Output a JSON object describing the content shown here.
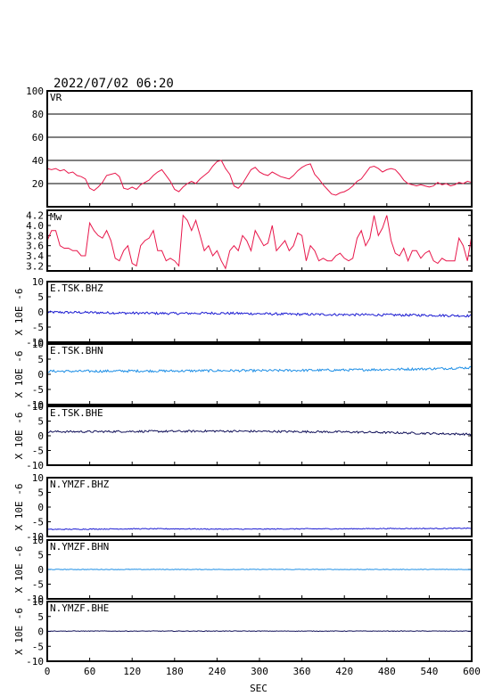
{
  "header": {
    "datetime": "2022/07/02  06:20"
  },
  "x_axis": {
    "label": "SEC",
    "ticks": [
      0,
      60,
      120,
      180,
      240,
      300,
      360,
      420,
      480,
      540,
      600
    ],
    "range": [
      0,
      600
    ]
  },
  "colors": {
    "vr": "#e8174b",
    "mw": "#e8174b",
    "bhz": "#1c1cd2",
    "bhn": "#1e8fe6",
    "bhe": "#12125a",
    "gridline": "#000000"
  },
  "chart_data": [
    {
      "type": "line",
      "id": "vr",
      "label": "VR",
      "ylim": [
        0,
        100
      ],
      "yticks": [
        20,
        40,
        60,
        80,
        100
      ],
      "grid": "horizontal",
      "x": [
        0,
        6,
        12,
        18,
        24,
        30,
        36,
        42,
        48,
        54,
        60,
        66,
        72,
        78,
        84,
        90,
        96,
        102,
        108,
        114,
        120,
        126,
        132,
        138,
        144,
        150,
        156,
        162,
        168,
        174,
        180,
        186,
        192,
        198,
        204,
        210,
        216,
        222,
        228,
        234,
        240,
        246,
        252,
        258,
        264,
        270,
        276,
        282,
        288,
        294,
        300,
        306,
        312,
        318,
        324,
        330,
        336,
        342,
        348,
        354,
        360,
        366,
        372,
        378,
        384,
        390,
        396,
        402,
        408,
        414,
        420,
        426,
        432,
        438,
        444,
        450,
        456,
        462,
        468,
        474,
        480,
        486,
        492,
        498,
        504,
        510,
        516,
        522,
        528,
        534,
        540,
        546,
        552,
        558,
        564,
        570,
        576,
        582,
        588,
        594,
        600
      ],
      "values": [
        33,
        32,
        33,
        31,
        32,
        29,
        30,
        27,
        26,
        24,
        16,
        14,
        17,
        21,
        27,
        28,
        29,
        26,
        16,
        15,
        17,
        15,
        19,
        21,
        23,
        27,
        30,
        32,
        27,
        22,
        15,
        13,
        17,
        20,
        22,
        20,
        24,
        27,
        30,
        35,
        39,
        40,
        33,
        28,
        18,
        16,
        20,
        26,
        32,
        34,
        30,
        28,
        27,
        30,
        28,
        26,
        25,
        24,
        27,
        31,
        34,
        36,
        37,
        28,
        24,
        19,
        15,
        11,
        10,
        12,
        13,
        15,
        18,
        22,
        24,
        29,
        34,
        35,
        33,
        30,
        32,
        33,
        32,
        28,
        23,
        20,
        19,
        18,
        19,
        18,
        17,
        18,
        21,
        19,
        20,
        18,
        19,
        21,
        20,
        22,
        21
      ]
    },
    {
      "type": "line",
      "id": "mw",
      "label": "Mw",
      "ylim": [
        3.1,
        4.3
      ],
      "yticks": [
        3.2,
        3.4,
        3.6,
        3.8,
        4.0,
        4.2
      ],
      "ytick_labels": [
        "3.2",
        "3.4",
        "3.6",
        "3.8",
        "4.0",
        "4.2"
      ],
      "x": [
        0,
        6,
        12,
        18,
        24,
        30,
        36,
        42,
        48,
        54,
        60,
        66,
        72,
        78,
        84,
        90,
        96,
        102,
        108,
        114,
        120,
        126,
        132,
        138,
        144,
        150,
        156,
        162,
        168,
        174,
        180,
        186,
        192,
        198,
        204,
        210,
        216,
        222,
        228,
        234,
        240,
        246,
        252,
        258,
        264,
        270,
        276,
        282,
        288,
        294,
        300,
        306,
        312,
        318,
        324,
        330,
        336,
        342,
        348,
        354,
        360,
        366,
        372,
        378,
        384,
        390,
        396,
        402,
        408,
        414,
        420,
        426,
        432,
        438,
        444,
        450,
        456,
        462,
        468,
        474,
        480,
        486,
        492,
        498,
        504,
        510,
        516,
        522,
        528,
        534,
        540,
        546,
        552,
        558,
        564,
        570,
        576,
        582,
        588,
        594,
        600
      ],
      "values": [
        3.7,
        3.9,
        3.9,
        3.6,
        3.55,
        3.55,
        3.5,
        3.5,
        3.4,
        3.4,
        4.05,
        3.9,
        3.8,
        3.75,
        3.9,
        3.7,
        3.35,
        3.3,
        3.5,
        3.6,
        3.25,
        3.2,
        3.6,
        3.7,
        3.75,
        3.9,
        3.5,
        3.5,
        3.3,
        3.35,
        3.3,
        3.2,
        4.2,
        4.1,
        3.9,
        4.1,
        3.8,
        3.5,
        3.6,
        3.4,
        3.5,
        3.3,
        3.15,
        3.5,
        3.6,
        3.5,
        3.8,
        3.7,
        3.5,
        3.9,
        3.75,
        3.6,
        3.65,
        4.0,
        3.5,
        3.6,
        3.7,
        3.5,
        3.6,
        3.85,
        3.8,
        3.3,
        3.6,
        3.5,
        3.3,
        3.35,
        3.3,
        3.3,
        3.4,
        3.45,
        3.35,
        3.3,
        3.35,
        3.75,
        3.9,
        3.6,
        3.75,
        4.2,
        3.8,
        3.95,
        4.2,
        3.7,
        3.45,
        3.4,
        3.55,
        3.3,
        3.5,
        3.5,
        3.35,
        3.45,
        3.5,
        3.3,
        3.25,
        3.35,
        3.3,
        3.3,
        3.3,
        3.75,
        3.6,
        3.3,
        3.8
      ]
    },
    {
      "type": "line",
      "id": "e_bhz",
      "label": "E.TSK.BHZ",
      "ylabel": "X 10E -6",
      "ylim": [
        -10,
        10
      ],
      "yticks": [
        -10,
        -5,
        0,
        5,
        10
      ],
      "color_key": "bhz",
      "noise_amplitude": 0.4,
      "x": [
        0,
        60,
        120,
        180,
        240,
        300,
        360,
        420,
        480,
        540,
        600
      ],
      "values": [
        -0.1,
        -0.2,
        -0.4,
        -0.5,
        -0.4,
        -0.6,
        -0.8,
        -0.9,
        -1.0,
        -1.1,
        -1.3
      ]
    },
    {
      "type": "line",
      "id": "e_bhn",
      "label": "E.TSK.BHN",
      "ylabel": "X 10E -6",
      "ylim": [
        -10,
        10
      ],
      "yticks": [
        -10,
        -5,
        0,
        5,
        10
      ],
      "color_key": "bhn",
      "noise_amplitude": 0.4,
      "x": [
        0,
        60,
        120,
        180,
        240,
        300,
        360,
        420,
        480,
        540,
        600
      ],
      "values": [
        1.0,
        1.0,
        1.1,
        1.1,
        1.2,
        1.2,
        1.3,
        1.4,
        1.6,
        1.8,
        2.2
      ]
    },
    {
      "type": "line",
      "id": "e_bhe",
      "label": "E.TSK.BHE",
      "ylabel": "X 10E -6",
      "ylim": [
        -10,
        10
      ],
      "yticks": [
        -10,
        -5,
        0,
        5,
        10
      ],
      "color_key": "bhe",
      "noise_amplitude": 0.35,
      "x": [
        0,
        60,
        120,
        180,
        240,
        300,
        360,
        420,
        480,
        540,
        600
      ],
      "values": [
        1.4,
        1.4,
        1.5,
        1.5,
        1.6,
        1.5,
        1.4,
        1.3,
        1.1,
        0.8,
        0.5
      ]
    },
    {
      "type": "line",
      "id": "n_bhz",
      "label": "N.YMZF.BHZ",
      "ylabel": "X 10E -6",
      "ylim": [
        -10,
        10
      ],
      "yticks": [
        -10,
        -5,
        0,
        5,
        10
      ],
      "color_key": "bhz",
      "noise_amplitude": 0.15,
      "x": [
        0,
        60,
        120,
        180,
        240,
        300,
        360,
        420,
        480,
        540,
        600
      ],
      "values": [
        -7.6,
        -7.5,
        -7.4,
        -7.4,
        -7.5,
        -7.5,
        -7.4,
        -7.4,
        -7.3,
        -7.3,
        -7.2
      ]
    },
    {
      "type": "line",
      "id": "n_bhn",
      "label": "N.YMZF.BHN",
      "ylabel": "X 10E -6",
      "ylim": [
        -10,
        10
      ],
      "yticks": [
        -10,
        -5,
        0,
        5,
        10
      ],
      "color_key": "bhn",
      "noise_amplitude": 0.1,
      "x": [
        0,
        60,
        120,
        180,
        240,
        300,
        360,
        420,
        480,
        540,
        600
      ],
      "values": [
        0,
        0,
        0,
        0,
        0,
        0,
        0,
        0,
        0,
        0,
        0
      ]
    },
    {
      "type": "line",
      "id": "n_bhe",
      "label": "N.YMZF.BHE",
      "ylabel": "X 10E -6",
      "ylim": [
        -10,
        10
      ],
      "yticks": [
        -10,
        -5,
        0,
        5,
        10
      ],
      "color_key": "bhe",
      "noise_amplitude": 0.1,
      "x": [
        0,
        60,
        120,
        180,
        240,
        300,
        360,
        420,
        480,
        540,
        600
      ],
      "values": [
        0.1,
        0.1,
        0.1,
        0.1,
        0.1,
        0.1,
        0.1,
        0.1,
        0.1,
        0.1,
        0.1
      ]
    }
  ]
}
